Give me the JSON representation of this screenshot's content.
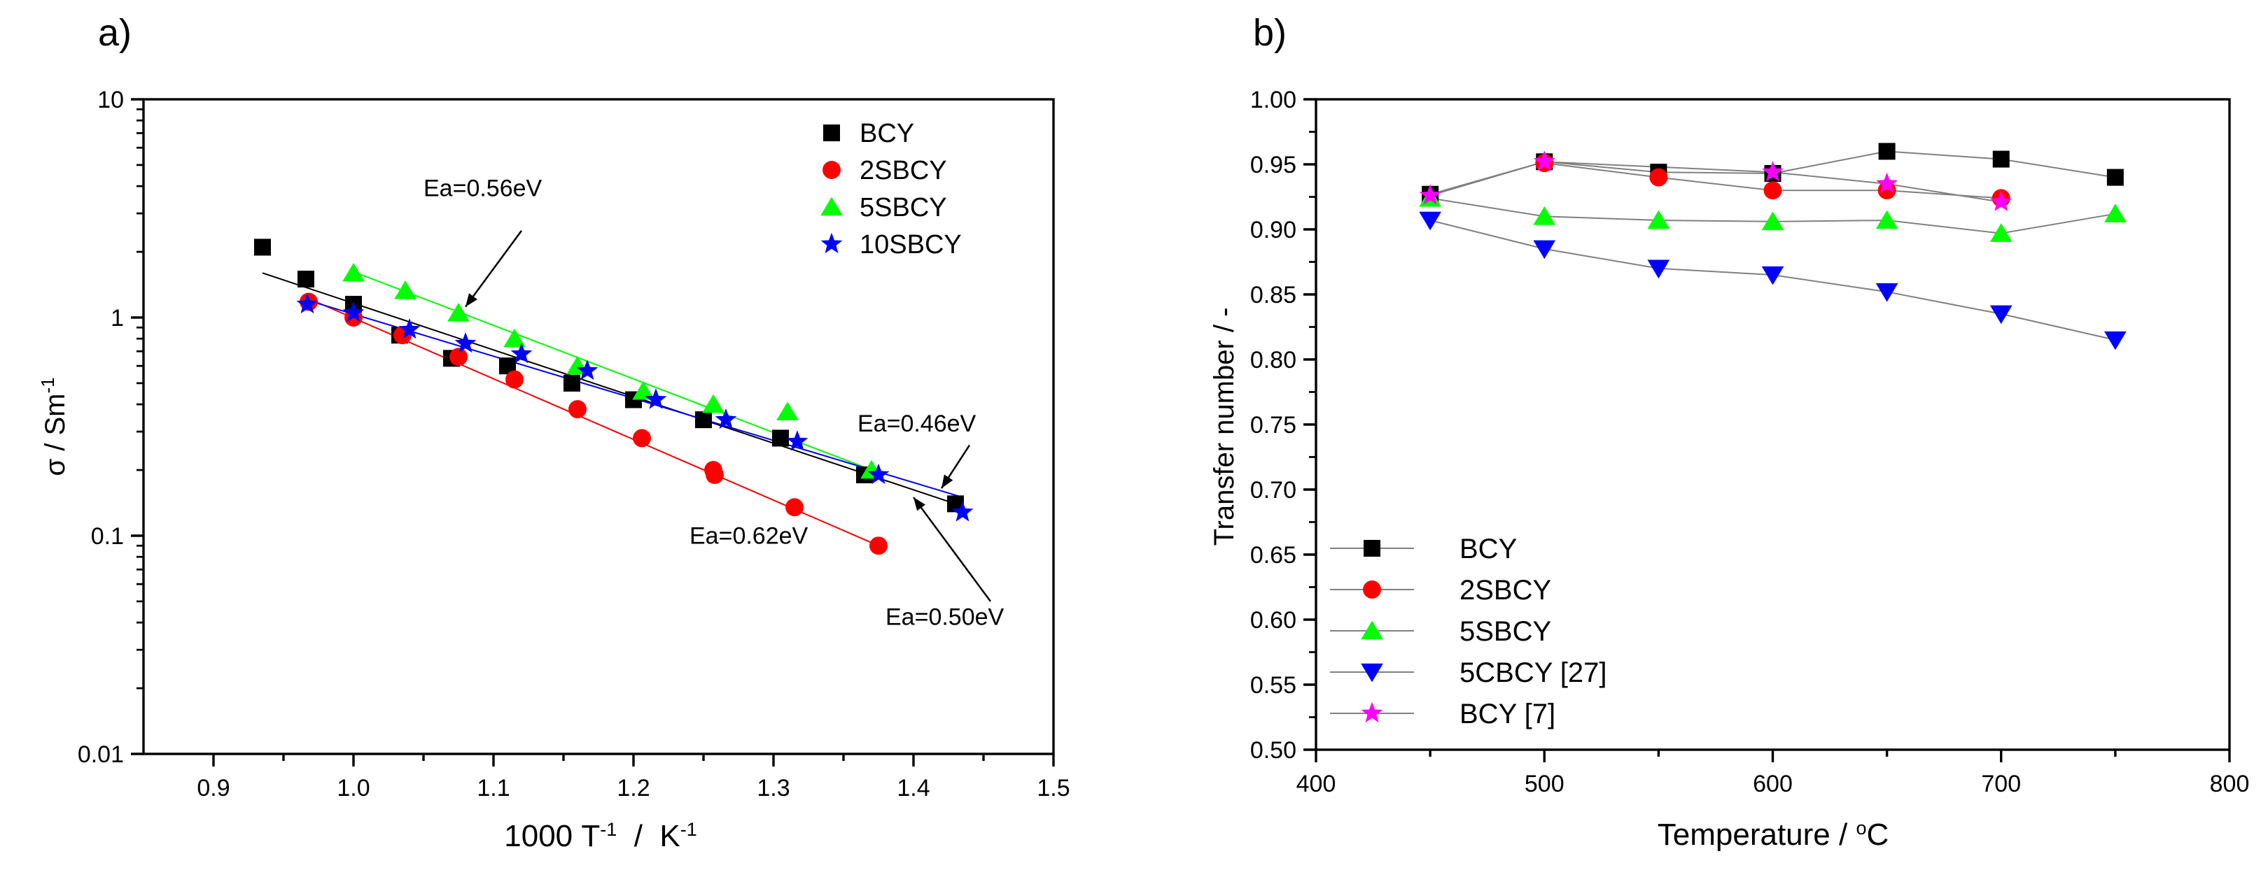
{
  "chart_data": [
    {
      "type": "scatter",
      "panel_label": "a)",
      "ylabel_main": "σ / Sm",
      "ylabel_sup": "-1",
      "xlabel_parts": [
        {
          "t": "1000 T",
          "sup": false
        },
        {
          "t": "-1",
          "sup": true
        },
        {
          "t": "  /  K",
          "sup": false
        },
        {
          "t": "-1",
          "sup": true
        }
      ],
      "xlim": [
        0.85,
        1.5
      ],
      "ylim": [
        0.01,
        10
      ],
      "yscale": "log",
      "xticks": [
        0.9,
        1.0,
        1.1,
        1.2,
        1.3,
        1.4,
        1.5
      ],
      "xtick_labels": [
        "0.9",
        "1.0",
        "1.1",
        "1.2",
        "1.3",
        "1.4",
        "1.5"
      ],
      "yticks": [
        0.01,
        0.1,
        1,
        10
      ],
      "ytick_labels": [
        "0.01",
        "0.1",
        "1",
        "10"
      ],
      "legend_position": "top-right",
      "series": [
        {
          "name": "BCY",
          "marker": "square",
          "color": "#000000",
          "x": [
            0.935,
            0.966,
            1.0,
            1.033,
            1.07,
            1.11,
            1.156,
            1.2,
            1.25,
            1.305,
            1.365,
            1.43
          ],
          "y": [
            2.1,
            1.5,
            1.15,
            0.83,
            0.65,
            0.6,
            0.5,
            0.42,
            0.34,
            0.28,
            0.19,
            0.14
          ],
          "fit": [
            [
              0.935,
              1.6
            ],
            [
              1.43,
              0.14
            ]
          ]
        },
        {
          "name": "2SBCY",
          "marker": "circle",
          "color": "#ff0000",
          "x": [
            0.968,
            1.0,
            1.035,
            1.075,
            1.115,
            1.16,
            1.206,
            1.257,
            1.258,
            1.315,
            1.375
          ],
          "y": [
            1.18,
            1.0,
            0.83,
            0.66,
            0.52,
            0.38,
            0.28,
            0.2,
            0.19,
            0.135,
            0.09
          ],
          "fit": [
            [
              0.968,
              1.22
            ],
            [
              1.375,
              0.09
            ]
          ]
        },
        {
          "name": "5SBCY",
          "marker": "triangle-up",
          "color": "#00ff00",
          "x": [
            1.0,
            1.037,
            1.075,
            1.115,
            1.16,
            1.207,
            1.257,
            1.31,
            1.37
          ],
          "y": [
            1.6,
            1.33,
            1.05,
            0.8,
            0.6,
            0.46,
            0.4,
            0.37,
            0.2
          ],
          "fit": [
            [
              1.0,
              1.62
            ],
            [
              1.37,
              0.2
            ]
          ]
        },
        {
          "name": "10SBCY",
          "marker": "star",
          "color": "#0000ff",
          "x": [
            0.967,
            1.0,
            1.04,
            1.08,
            1.12,
            1.167,
            1.216,
            1.266,
            1.317,
            1.375,
            1.435
          ],
          "y": [
            1.15,
            1.05,
            0.88,
            0.76,
            0.68,
            0.57,
            0.42,
            0.34,
            0.27,
            0.19,
            0.128
          ],
          "fit": [
            [
              0.967,
              1.2
            ],
            [
              1.435,
              0.15
            ]
          ]
        }
      ],
      "annotations": [
        {
          "text": "Ea=0.56eV",
          "tx": 1.05,
          "ty": 3.6,
          "ax0": 1.12,
          "ay0": 2.5,
          "ax1": 1.08,
          "ay1": 1.12
        },
        {
          "text": "Ea=0.46eV",
          "tx": 1.36,
          "ty": 0.3,
          "ax0": 1.44,
          "ay0": 0.26,
          "ax1": 1.42,
          "ay1": 0.165
        },
        {
          "text": "Ea=0.62eV",
          "tx": 1.24,
          "ty": 0.092,
          "ax0": null,
          "ay0": null,
          "ax1": null,
          "ay1": null
        },
        {
          "text": "Ea=0.50eV",
          "tx": 1.38,
          "ty": 0.039,
          "ax0": 1.455,
          "ay0": 0.05,
          "ax1": 1.4,
          "ay1": 0.15
        }
      ]
    },
    {
      "type": "line",
      "panel_label": "b)",
      "ylabel": "Transfer number / -",
      "xlabel_parts": [
        {
          "t": "Temperature / ",
          "sup": false
        },
        {
          "t": "o",
          "sup": true
        },
        {
          "t": "C",
          "sup": false
        }
      ],
      "xlim": [
        400,
        800
      ],
      "ylim": [
        0.5,
        1.0
      ],
      "xticks": [
        400,
        500,
        600,
        700,
        800
      ],
      "xtick_labels": [
        "400",
        "500",
        "600",
        "700",
        "800"
      ],
      "yticks": [
        0.5,
        0.55,
        0.6,
        0.65,
        0.7,
        0.75,
        0.8,
        0.85,
        0.9,
        0.95,
        1.0
      ],
      "ytick_labels": [
        "0.50",
        "0.55",
        "0.60",
        "0.65",
        "0.70",
        "0.75",
        "0.80",
        "0.85",
        "0.90",
        "0.95",
        "1.00"
      ],
      "legend_position": "bottom-left",
      "series": [
        {
          "name": "BCY",
          "marker": "square",
          "color": "#000000",
          "x": [
            450,
            500,
            550,
            600,
            650,
            700,
            750
          ],
          "y": [
            0.927,
            0.952,
            0.944,
            0.943,
            0.96,
            0.954,
            0.94
          ]
        },
        {
          "name": "2SBCY",
          "marker": "circle",
          "color": "#ff0000",
          "x": [
            500,
            550,
            600,
            650,
            700
          ],
          "y": [
            0.951,
            0.94,
            0.93,
            0.93,
            0.924
          ]
        },
        {
          "name": "5SBCY",
          "marker": "triangle-up",
          "color": "#00ff00",
          "x": [
            450,
            500,
            550,
            600,
            650,
            700,
            750
          ],
          "y": [
            0.924,
            0.91,
            0.907,
            0.906,
            0.907,
            0.897,
            0.912
          ]
        },
        {
          "name": "5CBCY [27]",
          "marker": "triangle-down",
          "color": "#0000ff",
          "x": [
            450,
            500,
            550,
            600,
            650,
            700,
            750
          ],
          "y": [
            0.907,
            0.885,
            0.87,
            0.865,
            0.852,
            0.835,
            0.815
          ]
        },
        {
          "name": "BCY [7]",
          "marker": "star",
          "color": "#ff00ff",
          "x": [
            450,
            500,
            600,
            650,
            700
          ],
          "y": [
            0.926,
            0.952,
            0.944,
            0.935,
            0.921
          ]
        }
      ]
    }
  ]
}
